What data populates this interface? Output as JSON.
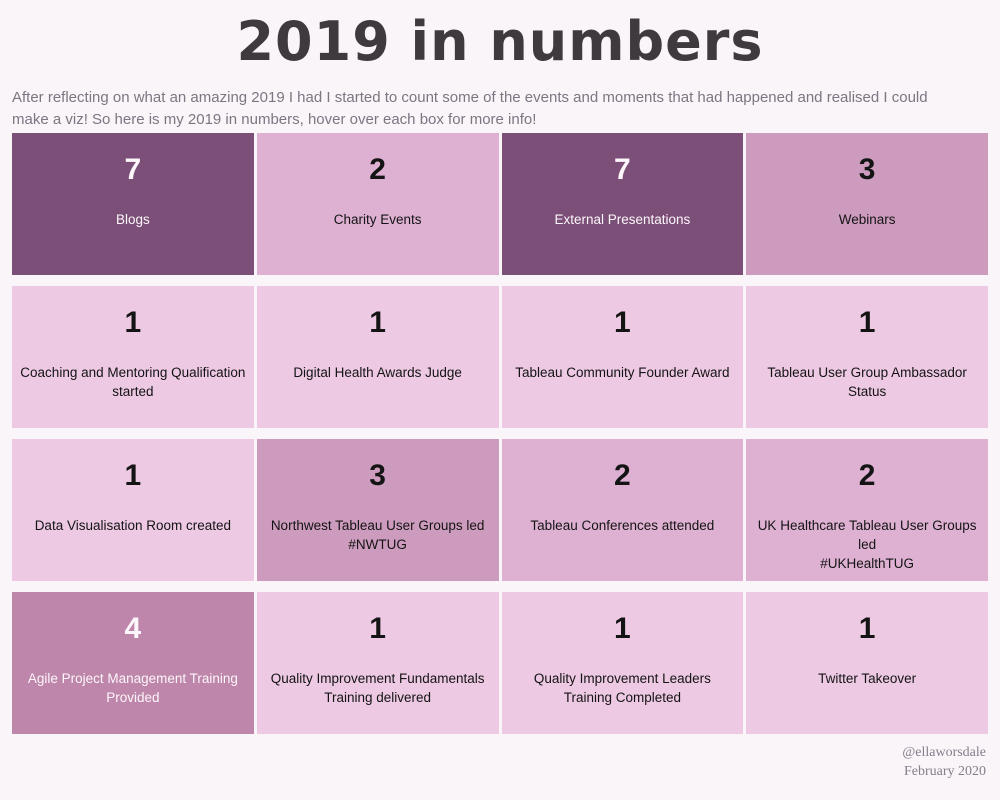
{
  "title": "2019 in numbers",
  "intro": "After reflecting on what an amazing 2019 I had I started to count some of the events and moments that had happened and realised I could make a viz! So here is my 2019 in numbers, hover over each box for more info!",
  "footer": {
    "handle": "@ellaworsdale",
    "date": "February 2020"
  },
  "colors": {
    "background": "#faf5f9",
    "title_text": "#3e3a3e",
    "intro_text": "#7d7581",
    "footer_text": "#857d8a",
    "text_on_dark": "#fdf6fa",
    "text_on_light": "#141414",
    "scale_by_value": {
      "1": "#edc9e3",
      "2": "#deb1d3",
      "3": "#cd9bbd",
      "4": "#bd86aa",
      "7": "#7b4f78"
    },
    "light_text_values": [
      4,
      7
    ]
  },
  "chart_data": {
    "type": "heatmap",
    "title": "2019 in numbers",
    "layout": {
      "rows": 4,
      "cols": 4,
      "legend": "none",
      "color_encoding": "tile value maps light pink (1) to dark purple (7)"
    },
    "values_range": [
      1,
      7
    ],
    "cells": [
      {
        "row": 1,
        "col": 1,
        "value": 7,
        "label": "Blogs"
      },
      {
        "row": 1,
        "col": 2,
        "value": 2,
        "label": "Charity Events"
      },
      {
        "row": 1,
        "col": 3,
        "value": 7,
        "label": "External Presentations"
      },
      {
        "row": 1,
        "col": 4,
        "value": 3,
        "label": "Webinars"
      },
      {
        "row": 2,
        "col": 1,
        "value": 1,
        "label": "Coaching and Mentoring Qualification started"
      },
      {
        "row": 2,
        "col": 2,
        "value": 1,
        "label": "Digital Health Awards Judge"
      },
      {
        "row": 2,
        "col": 3,
        "value": 1,
        "label": "Tableau Community Founder Award"
      },
      {
        "row": 2,
        "col": 4,
        "value": 1,
        "label": "Tableau User Group Ambassador Status"
      },
      {
        "row": 3,
        "col": 1,
        "value": 1,
        "label": "Data Visualisation Room created"
      },
      {
        "row": 3,
        "col": 2,
        "value": 3,
        "label": "Northwest Tableau User Groups led\n#NWTUG"
      },
      {
        "row": 3,
        "col": 3,
        "value": 2,
        "label": "Tableau Conferences attended"
      },
      {
        "row": 3,
        "col": 4,
        "value": 2,
        "label": "UK Healthcare Tableau User Groups led\n#UKHealthTUG"
      },
      {
        "row": 4,
        "col": 1,
        "value": 4,
        "label": "Agile Project Management Training Provided"
      },
      {
        "row": 4,
        "col": 2,
        "value": 1,
        "label": "Quality Improvement Fundamentals Training delivered"
      },
      {
        "row": 4,
        "col": 3,
        "value": 1,
        "label": "Quality Improvement Leaders Training Completed"
      },
      {
        "row": 4,
        "col": 4,
        "value": 1,
        "label": "Twitter Takeover"
      }
    ]
  }
}
